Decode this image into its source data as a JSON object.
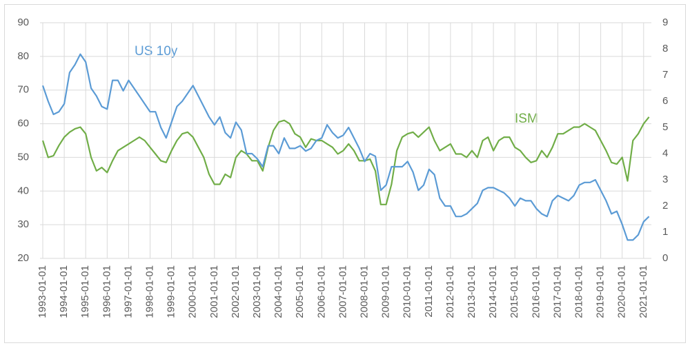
{
  "chart_data": {
    "type": "line",
    "x": [
      "1993-01-01",
      "1993-04-01",
      "1993-07-01",
      "1993-10-01",
      "1994-01-01",
      "1994-04-01",
      "1994-07-01",
      "1994-10-01",
      "1995-01-01",
      "1995-04-01",
      "1995-07-01",
      "1995-10-01",
      "1996-01-01",
      "1996-04-01",
      "1996-07-01",
      "1996-10-01",
      "1997-01-01",
      "1997-04-01",
      "1997-07-01",
      "1997-10-01",
      "1998-01-01",
      "1998-04-01",
      "1998-07-01",
      "1998-10-01",
      "1999-01-01",
      "1999-04-01",
      "1999-07-01",
      "1999-10-01",
      "2000-01-01",
      "2000-04-01",
      "2000-07-01",
      "2000-10-01",
      "2001-01-01",
      "2001-04-01",
      "2001-07-01",
      "2001-10-01",
      "2002-01-01",
      "2002-04-01",
      "2002-07-01",
      "2002-10-01",
      "2003-01-01",
      "2003-04-01",
      "2003-07-01",
      "2003-10-01",
      "2004-01-01",
      "2004-04-01",
      "2004-07-01",
      "2004-10-01",
      "2005-01-01",
      "2005-04-01",
      "2005-07-01",
      "2005-10-01",
      "2006-01-01",
      "2006-04-01",
      "2006-07-01",
      "2006-10-01",
      "2007-01-01",
      "2007-04-01",
      "2007-07-01",
      "2007-10-01",
      "2008-01-01",
      "2008-04-01",
      "2008-07-01",
      "2008-10-01",
      "2009-01-01",
      "2009-04-01",
      "2009-07-01",
      "2009-10-01",
      "2010-01-01",
      "2010-04-01",
      "2010-07-01",
      "2010-10-01",
      "2011-01-01",
      "2011-04-01",
      "2011-07-01",
      "2011-10-01",
      "2012-01-01",
      "2012-04-01",
      "2012-07-01",
      "2012-10-01",
      "2013-01-01",
      "2013-04-01",
      "2013-07-01",
      "2013-10-01",
      "2014-01-01",
      "2014-04-01",
      "2014-07-01",
      "2014-10-01",
      "2015-01-01",
      "2015-04-01",
      "2015-07-01",
      "2015-10-01",
      "2016-01-01",
      "2016-04-01",
      "2016-07-01",
      "2016-10-01",
      "2017-01-01",
      "2017-04-01",
      "2017-07-01",
      "2017-10-01",
      "2018-01-01",
      "2018-04-01",
      "2018-07-01",
      "2018-10-01",
      "2019-01-01",
      "2019-04-01",
      "2019-07-01",
      "2019-10-01",
      "2020-01-01",
      "2020-04-01",
      "2020-07-01",
      "2020-10-01",
      "2021-01-01",
      "2021-04-01"
    ],
    "series": [
      {
        "name": "ISM",
        "color": "#70ad47",
        "axis": "y",
        "values": [
          55,
          50,
          50.5,
          53.5,
          56,
          57.5,
          58.5,
          59,
          57,
          50,
          46,
          47,
          45.5,
          49,
          52,
          53,
          54,
          55,
          56,
          55,
          53,
          51,
          49,
          48.5,
          52,
          55,
          57,
          57.5,
          56,
          53,
          50,
          45,
          42,
          42,
          45,
          44,
          50,
          52,
          51,
          49,
          49,
          46,
          53,
          58,
          60.5,
          61,
          60,
          57,
          56,
          53,
          55.5,
          55,
          55,
          54,
          53,
          51,
          52,
          54,
          52,
          49,
          49,
          49.5,
          46,
          36,
          36,
          42,
          52,
          56,
          57,
          57.5,
          56,
          57.5,
          59,
          55,
          52,
          53,
          54,
          51,
          51,
          50,
          52,
          50,
          55,
          56,
          52,
          55,
          56,
          56,
          53,
          52,
          50,
          48.5,
          49,
          52,
          50,
          53,
          57,
          57,
          58,
          59,
          59,
          60,
          59,
          58,
          55,
          52,
          48.5,
          48,
          50,
          43,
          55,
          57,
          60,
          62
        ]
      },
      {
        "name": "US 10y",
        "color": "#5b9bd5",
        "axis": "y2",
        "values": [
          6.6,
          6.0,
          5.5,
          5.6,
          5.9,
          7.1,
          7.4,
          7.8,
          7.5,
          6.5,
          6.2,
          5.8,
          5.7,
          6.8,
          6.8,
          6.4,
          6.8,
          6.5,
          6.2,
          5.9,
          5.6,
          5.6,
          5.0,
          4.6,
          5.2,
          5.8,
          6.0,
          6.3,
          6.6,
          6.2,
          5.8,
          5.4,
          5.1,
          5.4,
          4.8,
          4.6,
          5.2,
          4.9,
          4.0,
          4.0,
          3.8,
          3.5,
          4.3,
          4.3,
          4.0,
          4.6,
          4.2,
          4.2,
          4.3,
          4.1,
          4.2,
          4.5,
          4.6,
          5.1,
          4.8,
          4.6,
          4.7,
          5.0,
          4.6,
          4.2,
          3.7,
          4.0,
          3.9,
          2.6,
          2.8,
          3.5,
          3.5,
          3.5,
          3.7,
          3.3,
          2.6,
          2.8,
          3.4,
          3.2,
          2.3,
          2.0,
          2.0,
          1.6,
          1.6,
          1.7,
          1.9,
          2.1,
          2.6,
          2.7,
          2.7,
          2.6,
          2.5,
          2.3,
          2.0,
          2.3,
          2.2,
          2.2,
          1.9,
          1.7,
          1.6,
          2.2,
          2.4,
          2.3,
          2.2,
          2.4,
          2.8,
          2.9,
          2.9,
          3.0,
          2.6,
          2.2,
          1.7,
          1.8,
          1.3,
          0.7,
          0.7,
          0.9,
          1.4,
          1.6
        ]
      }
    ],
    "annotations": [
      "US 10y",
      "ISM"
    ],
    "ylim": [
      20,
      90
    ],
    "yticks": [
      20,
      30,
      40,
      50,
      60,
      70,
      80,
      90
    ],
    "y2lim": [
      0,
      9
    ],
    "y2ticks": [
      0,
      1,
      2,
      3,
      4,
      5,
      6,
      7,
      8,
      9
    ],
    "grid": true
  }
}
